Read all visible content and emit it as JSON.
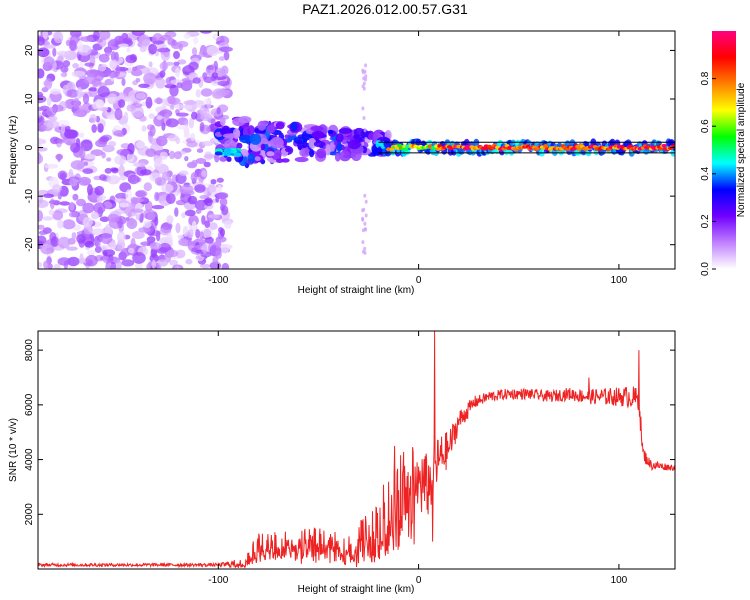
{
  "title": "PAZ1.2026.012.00.57.G31",
  "colors": {
    "background": "#ffffff",
    "axis": "#000000",
    "snr_line": "#ee2222",
    "zero_line": "#000000"
  },
  "chart_data": [
    {
      "type": "heatmap",
      "name": "spectrogram",
      "xlabel": "Height of straight line (km)",
      "ylabel": "Frequency (Hz)",
      "xlim": [
        -190,
        128
      ],
      "ylim": [
        -25,
        24
      ],
      "x_ticks": [
        -100,
        0,
        100
      ],
      "x_tick_labels": [
        "-100",
        "0",
        "100"
      ],
      "y_ticks": [
        -20,
        -10,
        0,
        10,
        20
      ],
      "y_tick_labels": [
        "-20",
        "-10",
        "0",
        "10",
        "20"
      ],
      "colorbar": {
        "label": "Normalized spectral amplitude",
        "range": [
          0,
          1
        ],
        "ticks": [
          0.0,
          0.2,
          0.4,
          0.6,
          0.8
        ],
        "tick_labels": [
          "0.0",
          "0.2",
          "0.4",
          "0.6",
          "0.8"
        ],
        "colormap_stops": [
          "#ffffff",
          "#c080ff",
          "#7000ff",
          "#0000ff",
          "#00ffff",
          "#00ff00",
          "#ffff00",
          "#ff8000",
          "#ff0000",
          "#ff0080"
        ]
      },
      "features": [
        {
          "region": "noise",
          "x_range": [
            -190,
            -95
          ],
          "f_range": [
            -25,
            24
          ],
          "amplitude": 0.15
        },
        {
          "region": "transition",
          "x_range": [
            -100,
            -15
          ],
          "f_range": [
            -15,
            10
          ],
          "amplitude": 0.3
        },
        {
          "region": "tone",
          "x_range": [
            -20,
            128
          ],
          "f_center": 0,
          "amplitude": 0.85
        }
      ]
    },
    {
      "type": "line",
      "name": "snr",
      "xlabel": "Height of straight line (km)",
      "ylabel": "SNR (10 * v/v)",
      "xlim": [
        -190,
        128
      ],
      "ylim": [
        0,
        8700
      ],
      "x_ticks": [
        -100,
        0,
        100
      ],
      "x_tick_labels": [
        "-100",
        "0",
        "100"
      ],
      "y_ticks": [
        2000,
        4000,
        6000,
        8000
      ],
      "y_tick_labels": [
        "2000",
        "4000",
        "6000",
        "8000"
      ],
      "profile": [
        [
          -190,
          150
        ],
        [
          -100,
          150
        ],
        [
          -88,
          200
        ],
        [
          -80,
          800
        ],
        [
          -70,
          900
        ],
        [
          -60,
          900
        ],
        [
          -50,
          1000
        ],
        [
          -40,
          800
        ],
        [
          -32,
          600
        ],
        [
          -28,
          1200
        ],
        [
          -22,
          1000
        ],
        [
          -18,
          1800
        ],
        [
          -12,
          2200
        ],
        [
          -8,
          2800
        ],
        [
          -5,
          3600
        ],
        [
          0,
          3200
        ],
        [
          5,
          3000
        ],
        [
          10,
          4000
        ],
        [
          15,
          4400
        ],
        [
          20,
          5400
        ],
        [
          28,
          6100
        ],
        [
          35,
          6300
        ],
        [
          45,
          6400
        ],
        [
          55,
          6400
        ],
        [
          65,
          6300
        ],
        [
          75,
          6400
        ],
        [
          85,
          6300
        ],
        [
          95,
          6300
        ],
        [
          105,
          6300
        ],
        [
          110,
          6200
        ],
        [
          112,
          4200
        ],
        [
          116,
          3800
        ],
        [
          128,
          3700
        ]
      ],
      "noise_profile": [
        [
          -190,
          60
        ],
        [
          -100,
          60
        ],
        [
          -88,
          200
        ],
        [
          -80,
          550
        ],
        [
          -60,
          550
        ],
        [
          -40,
          550
        ],
        [
          -30,
          800
        ],
        [
          -20,
          1200
        ],
        [
          -10,
          1600
        ],
        [
          0,
          1400
        ],
        [
          10,
          900
        ],
        [
          20,
          400
        ],
        [
          30,
          200
        ],
        [
          60,
          200
        ],
        [
          80,
          250
        ],
        [
          100,
          350
        ],
        [
          110,
          450
        ],
        [
          114,
          200
        ],
        [
          128,
          100
        ]
      ],
      "spikes": [
        [
          8,
          8700
        ],
        [
          7,
          1000
        ],
        [
          -12,
          4500
        ],
        [
          85,
          7000
        ],
        [
          110,
          8000
        ]
      ]
    }
  ]
}
